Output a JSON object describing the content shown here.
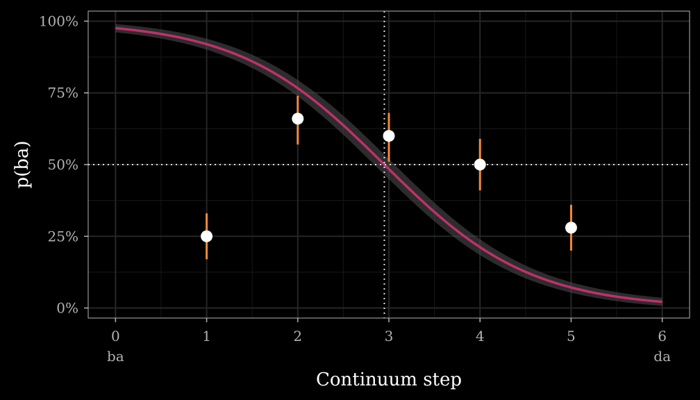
{
  "chart_data": {
    "type": "scatter",
    "title": "",
    "xlabel": "Continuum step",
    "ylabel": "p(ba)",
    "xlim": [
      -0.3,
      6.3
    ],
    "ylim": [
      -0.035,
      1.035
    ],
    "x_ticks": [
      0,
      1,
      2,
      3,
      4,
      5,
      6
    ],
    "x_tick_labels": [
      "0",
      "1",
      "2",
      "3",
      "4",
      "5",
      "6"
    ],
    "x_endpoint_labels": {
      "left": "ba",
      "right": "da"
    },
    "y_ticks": [
      0,
      0.25,
      0.5,
      0.75,
      1.0
    ],
    "y_tick_labels": [
      "0%",
      "25%",
      "50%",
      "75%",
      "100%"
    ],
    "grid": true,
    "legend": "none",
    "points": [
      {
        "x": 1,
        "y": 0.25,
        "lower": 0.17,
        "upper": 0.33
      },
      {
        "x": 2,
        "y": 0.66,
        "lower": 0.57,
        "upper": 0.74
      },
      {
        "x": 3,
        "y": 0.6,
        "lower": 0.51,
        "upper": 0.68
      },
      {
        "x": 4,
        "y": 0.5,
        "lower": 0.41,
        "upper": 0.59
      },
      {
        "x": 5,
        "y": 0.28,
        "lower": 0.2,
        "upper": 0.36
      }
    ],
    "fit_curve": {
      "type": "logistic",
      "midpoint": 2.95,
      "slope": 1.25,
      "band_halfwidth": 0.035
    },
    "reference_lines": {
      "vertical_x": 2.95,
      "horizontal_y": 0.5
    },
    "colors": {
      "background": "#000000",
      "panel": "#000000",
      "grid": "#262626",
      "grid_minor": "#141414",
      "border": "#b3b3b3",
      "curve": "#c0306c",
      "band": "#4a4a4a",
      "errorbar": "#f4893b",
      "point": "#ffffff",
      "reference": "#e0e0e0"
    }
  }
}
